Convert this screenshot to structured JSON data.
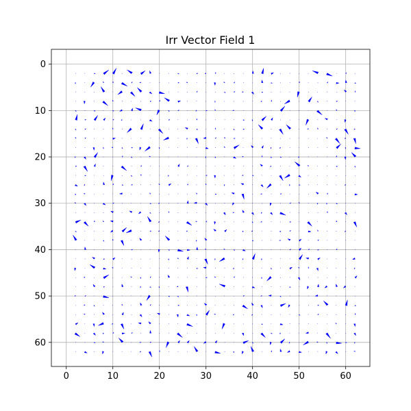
{
  "chart_data": {
    "type": "quiver",
    "title": "Irr Vector Field 1",
    "xlabel": "",
    "ylabel": "",
    "xlim": [
      -3.2,
      65.2
    ],
    "ylim": [
      65.2,
      -3.2
    ],
    "y_inverted": true,
    "grid": true,
    "x_ticks": [
      0,
      10,
      20,
      30,
      40,
      50,
      60
    ],
    "y_ticks": [
      0,
      10,
      20,
      30,
      40,
      50,
      60
    ],
    "x_tick_labels": [
      "0",
      "10",
      "20",
      "30",
      "40",
      "50",
      "60"
    ],
    "y_tick_labels": [
      "0",
      "10",
      "20",
      "30",
      "40",
      "50",
      "60"
    ],
    "arrow_color": "#0000ff",
    "sample_grid": {
      "x_start": 2,
      "x_end": 62,
      "x_step": 2,
      "y_start": 2,
      "y_end": 62,
      "y_step": 2
    },
    "series": [
      {
        "vectors": [
          {
            "x": 8,
            "y": 2,
            "u": 0.6,
            "v": -0.4
          },
          {
            "x": 10,
            "y": 2,
            "u": 0.4,
            "v": -0.6
          },
          {
            "x": 14,
            "y": 2,
            "u": -0.5,
            "v": -0.4
          },
          {
            "x": 16,
            "y": 2,
            "u": 0.5,
            "v": -0.3
          },
          {
            "x": 6,
            "y": 4,
            "u": -0.4,
            "v": 0.5
          },
          {
            "x": 12,
            "y": 4,
            "u": 0.6,
            "v": 0.4
          },
          {
            "x": 8,
            "y": 6,
            "u": -0.3,
            "v": -0.6
          },
          {
            "x": 12,
            "y": 6,
            "u": -0.5,
            "v": 0.3
          },
          {
            "x": 14,
            "y": 6,
            "u": 0.4,
            "v": 0.5
          },
          {
            "x": 16,
            "y": 6,
            "u": -0.4,
            "v": -0.5
          },
          {
            "x": 20,
            "y": 6,
            "u": 0.6,
            "v": 0.2
          },
          {
            "x": 8,
            "y": 8,
            "u": 0.5,
            "v": 0.5
          },
          {
            "x": 22,
            "y": 8,
            "u": -0.5,
            "v": -0.4
          },
          {
            "x": 2,
            "y": 12,
            "u": 0.2,
            "v": -0.6
          },
          {
            "x": 6,
            "y": 12,
            "u": 0.4,
            "v": -0.5
          },
          {
            "x": 16,
            "y": 10,
            "u": -0.6,
            "v": -0.3
          },
          {
            "x": 20,
            "y": 10,
            "u": -0.3,
            "v": 0.5
          },
          {
            "x": 16,
            "y": 14,
            "u": 0.3,
            "v": -0.6
          },
          {
            "x": 20,
            "y": 14,
            "u": 0.4,
            "v": 0.5
          },
          {
            "x": 14,
            "y": 14,
            "u": -0.5,
            "v": 0.4
          },
          {
            "x": 22,
            "y": 16,
            "u": -0.6,
            "v": 0.2
          },
          {
            "x": 18,
            "y": 18,
            "u": -0.6,
            "v": 0.4
          },
          {
            "x": 28,
            "y": 16,
            "u": 0.2,
            "v": 0.6
          },
          {
            "x": 4,
            "y": 22,
            "u": 0.3,
            "v": 0.6
          },
          {
            "x": 6,
            "y": 20,
            "u": 0.4,
            "v": -0.5
          },
          {
            "x": 10,
            "y": 24,
            "u": -0.2,
            "v": 0.6
          },
          {
            "x": 12,
            "y": 22,
            "u": 0.5,
            "v": 0.5
          },
          {
            "x": 36,
            "y": 18,
            "u": 0.6,
            "v": -0.3
          },
          {
            "x": 42,
            "y": 2,
            "u": 0.2,
            "v": -0.6
          },
          {
            "x": 42,
            "y": 12,
            "u": 0.5,
            "v": -0.4
          },
          {
            "x": 42,
            "y": 14,
            "u": -0.4,
            "v": -0.5
          },
          {
            "x": 46,
            "y": 14,
            "u": 0.3,
            "v": 0.6
          },
          {
            "x": 46,
            "y": 10,
            "u": 0.5,
            "v": -0.5
          },
          {
            "x": 48,
            "y": 8,
            "u": -0.6,
            "v": 0.3
          },
          {
            "x": 48,
            "y": 14,
            "u": -0.4,
            "v": -0.5
          },
          {
            "x": 50,
            "y": 6,
            "u": -0.2,
            "v": 0.6
          },
          {
            "x": 52,
            "y": 8,
            "u": 0.4,
            "v": -0.5
          },
          {
            "x": 52,
            "y": 12,
            "u": -0.3,
            "v": 0.6
          },
          {
            "x": 54,
            "y": 10,
            "u": 0.5,
            "v": 0.5
          },
          {
            "x": 54,
            "y": 2,
            "u": -0.6,
            "v": -0.3
          },
          {
            "x": 56,
            "y": 2,
            "u": 0.6,
            "v": 0.3
          },
          {
            "x": 58,
            "y": 16,
            "u": 0.4,
            "v": 0.6
          },
          {
            "x": 58,
            "y": 18,
            "u": 0.5,
            "v": -0.4
          },
          {
            "x": 60,
            "y": 14,
            "u": 0.3,
            "v": 0.6
          },
          {
            "x": 62,
            "y": 16,
            "u": 0.1,
            "v": 0.6
          },
          {
            "x": 62,
            "y": 18,
            "u": 0.6,
            "v": 0.1
          },
          {
            "x": 62,
            "y": 20,
            "u": -0.4,
            "v": -0.5
          },
          {
            "x": 50,
            "y": 22,
            "u": -0.5,
            "v": -0.5
          },
          {
            "x": 46,
            "y": 24,
            "u": 0.3,
            "v": 0.6
          },
          {
            "x": 44,
            "y": 26,
            "u": -0.5,
            "v": 0.4
          },
          {
            "x": 48,
            "y": 24,
            "u": -0.6,
            "v": 0.3
          },
          {
            "x": 38,
            "y": 28,
            "u": 0.1,
            "v": 0.6
          },
          {
            "x": 46,
            "y": 32,
            "u": 0.6,
            "v": 0.3
          },
          {
            "x": 52,
            "y": 34,
            "u": 0.4,
            "v": 0.5
          },
          {
            "x": 62,
            "y": 34,
            "u": 0.2,
            "v": 0.6
          },
          {
            "x": 4,
            "y": 34,
            "u": 0.4,
            "v": 0.5
          },
          {
            "x": 2,
            "y": 34,
            "u": 0.6,
            "v": -0.2
          },
          {
            "x": 2,
            "y": 38,
            "u": -0.3,
            "v": -0.6
          },
          {
            "x": 12,
            "y": 36,
            "u": 0.5,
            "v": -0.4
          },
          {
            "x": 12,
            "y": 38,
            "u": 0.2,
            "v": 0.6
          },
          {
            "x": 14,
            "y": 36,
            "u": -0.6,
            "v": 0.2
          },
          {
            "x": 18,
            "y": 34,
            "u": -0.3,
            "v": -0.6
          },
          {
            "x": 22,
            "y": 38,
            "u": -0.4,
            "v": -0.5
          },
          {
            "x": 24,
            "y": 40,
            "u": 0.6,
            "v": 0.2
          },
          {
            "x": 26,
            "y": 34,
            "u": 0.5,
            "v": 0.4
          },
          {
            "x": 30,
            "y": 42,
            "u": 0.2,
            "v": 0.6
          },
          {
            "x": 34,
            "y": 42,
            "u": -0.6,
            "v": 0.3
          },
          {
            "x": 40,
            "y": 42,
            "u": 0.3,
            "v": -0.6
          },
          {
            "x": 44,
            "y": 46,
            "u": -0.5,
            "v": 0.4
          },
          {
            "x": 50,
            "y": 42,
            "u": 0.4,
            "v": -0.5
          },
          {
            "x": 8,
            "y": 46,
            "u": 0.6,
            "v": -0.3
          },
          {
            "x": 6,
            "y": 44,
            "u": -0.5,
            "v": -0.4
          },
          {
            "x": 8,
            "y": 50,
            "u": 0.6,
            "v": 0.2
          },
          {
            "x": 18,
            "y": 50,
            "u": -0.4,
            "v": 0.5
          },
          {
            "x": 26,
            "y": 48,
            "u": 0.1,
            "v": 0.6
          },
          {
            "x": 34,
            "y": 48,
            "u": -0.6,
            "v": -0.3
          },
          {
            "x": 38,
            "y": 52,
            "u": 0.5,
            "v": 0.4
          },
          {
            "x": 46,
            "y": 52,
            "u": 0.6,
            "v": -0.2
          },
          {
            "x": 56,
            "y": 52,
            "u": -0.4,
            "v": -0.5
          },
          {
            "x": 60,
            "y": 52,
            "u": 0.2,
            "v": -0.6
          },
          {
            "x": 12,
            "y": 56,
            "u": 0.2,
            "v": 0.6
          },
          {
            "x": 12,
            "y": 60,
            "u": -0.4,
            "v": -0.5
          },
          {
            "x": 8,
            "y": 56,
            "u": -0.6,
            "v": 0.2
          },
          {
            "x": 24,
            "y": 58,
            "u": 0.5,
            "v": 0.5
          },
          {
            "x": 22,
            "y": 60,
            "u": -0.3,
            "v": 0.6
          },
          {
            "x": 26,
            "y": 56,
            "u": 0.6,
            "v": 0.3
          },
          {
            "x": 30,
            "y": 54,
            "u": 0.4,
            "v": -0.5
          },
          {
            "x": 32,
            "y": 62,
            "u": 0.6,
            "v": 0.2
          },
          {
            "x": 34,
            "y": 56,
            "u": -0.3,
            "v": 0.6
          },
          {
            "x": 38,
            "y": 60,
            "u": 0.6,
            "v": -0.2
          },
          {
            "x": 40,
            "y": 62,
            "u": -0.2,
            "v": -0.6
          },
          {
            "x": 42,
            "y": 58,
            "u": 0.4,
            "v": 0.5
          },
          {
            "x": 46,
            "y": 60,
            "u": 0.5,
            "v": -0.4
          },
          {
            "x": 52,
            "y": 60,
            "u": -0.6,
            "v": 0.3
          },
          {
            "x": 56,
            "y": 58,
            "u": 0.4,
            "v": 0.6
          },
          {
            "x": 58,
            "y": 60,
            "u": 0.6,
            "v": 0.1
          },
          {
            "x": 2,
            "y": 58,
            "u": 0.5,
            "v": 0.4
          },
          {
            "x": 18,
            "y": 62,
            "u": 0.2,
            "v": 0.6
          },
          {
            "x": 28,
            "y": 62,
            "u": -0.3,
            "v": -0.6
          }
        ]
      }
    ]
  }
}
